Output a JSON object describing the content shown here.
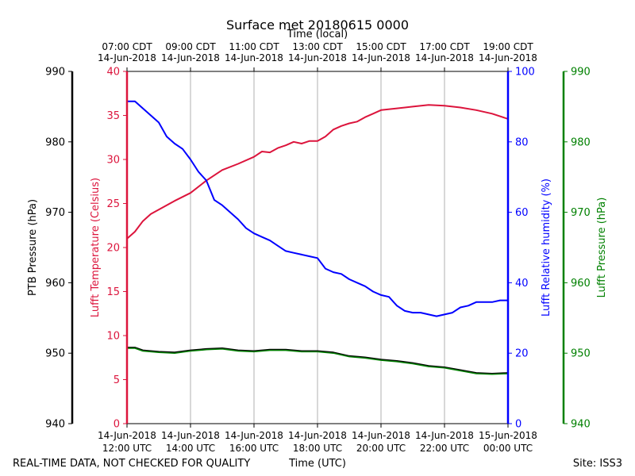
{
  "chart_data": {
    "type": "line",
    "title": "Surface met 20180615 0000",
    "top_axis_label": "Time (local)",
    "top_ticks": [
      {
        "x": 12,
        "line1": "07:00 CDT",
        "line2": "14-Jun-2018"
      },
      {
        "x": 14,
        "line1": "09:00 CDT",
        "line2": "14-Jun-2018"
      },
      {
        "x": 16,
        "line1": "11:00 CDT",
        "line2": "14-Jun-2018"
      },
      {
        "x": 18,
        "line1": "13:00 CDT",
        "line2": "14-Jun-2018"
      },
      {
        "x": 20,
        "line1": "15:00 CDT",
        "line2": "14-Jun-2018"
      },
      {
        "x": 22,
        "line1": "17:00 CDT",
        "line2": "14-Jun-2018"
      },
      {
        "x": 24,
        "line1": "19:00 CDT",
        "line2": "14-Jun-2018"
      }
    ],
    "bottom_ticks": [
      {
        "x": 12,
        "line1": "14-Jun-2018",
        "line2": "12:00 UTC"
      },
      {
        "x": 14,
        "line1": "14-Jun-2018",
        "line2": "14:00 UTC"
      },
      {
        "x": 16,
        "line1": "14-Jun-2018",
        "line2": "16:00 UTC"
      },
      {
        "x": 18,
        "line1": "14-Jun-2018",
        "line2": "18:00 UTC"
      },
      {
        "x": 20,
        "line1": "14-Jun-2018",
        "line2": "20:00 UTC"
      },
      {
        "x": 22,
        "line1": "14-Jun-2018",
        "line2": "22:00 UTC"
      },
      {
        "x": 24,
        "line1": "15-Jun-2018",
        "line2": "00:00 UTC"
      }
    ],
    "xlabel": "Time (UTC)",
    "xlim": [
      12,
      24
    ],
    "grid": true,
    "axes": {
      "ptb": {
        "label": "PTB Pressure (hPa)",
        "ylim": [
          940,
          990
        ],
        "ticks": [
          940,
          950,
          960,
          970,
          980,
          990
        ],
        "color": "#000000"
      },
      "temp": {
        "label": "Lufft Temperature (Celsius)",
        "ylim": [
          0,
          40
        ],
        "ticks": [
          0,
          5,
          10,
          15,
          20,
          25,
          30,
          35,
          40
        ],
        "color": "#dc143c"
      },
      "rh": {
        "label": "Lufft Relative humidity (%)",
        "ylim": [
          0,
          100
        ],
        "ticks": [
          0,
          20,
          40,
          60,
          80,
          100
        ],
        "color": "#0000ff"
      },
      "lufft_p": {
        "label": "Lufft Pressure (hPa)",
        "ylim": [
          940,
          990
        ],
        "ticks": [
          940,
          950,
          960,
          970,
          980,
          990
        ],
        "color": "#008000"
      }
    },
    "series": [
      {
        "name": "Lufft Temperature",
        "axis": "temp",
        "color": "#dc143c",
        "x": [
          12.0,
          12.25,
          12.5,
          12.75,
          13.0,
          13.5,
          14.0,
          14.5,
          15.0,
          15.5,
          16.0,
          16.25,
          16.5,
          16.75,
          17.0,
          17.25,
          17.5,
          17.75,
          18.0,
          18.25,
          18.5,
          18.75,
          19.0,
          19.25,
          19.5,
          19.75,
          20.0,
          20.5,
          21.0,
          21.5,
          22.0,
          22.5,
          23.0,
          23.5,
          24.0
        ],
        "y": [
          21.0,
          21.8,
          23.0,
          23.8,
          24.3,
          25.3,
          26.2,
          27.6,
          28.8,
          29.5,
          30.3,
          30.9,
          30.8,
          31.3,
          31.6,
          32.0,
          31.8,
          32.1,
          32.1,
          32.6,
          33.4,
          33.8,
          34.1,
          34.3,
          34.8,
          35.2,
          35.6,
          35.8,
          36.0,
          36.2,
          36.1,
          35.9,
          35.6,
          35.2,
          34.6
        ]
      },
      {
        "name": "Lufft Relative humidity",
        "axis": "rh",
        "color": "#0000ff",
        "x": [
          12.0,
          12.25,
          12.5,
          12.75,
          13.0,
          13.25,
          13.5,
          13.75,
          14.0,
          14.25,
          14.5,
          14.75,
          15.0,
          15.25,
          15.5,
          15.75,
          16.0,
          16.25,
          16.5,
          16.75,
          17.0,
          17.25,
          17.5,
          17.75,
          18.0,
          18.25,
          18.5,
          18.75,
          19.0,
          19.25,
          19.5,
          19.75,
          20.0,
          20.25,
          20.5,
          20.75,
          21.0,
          21.25,
          21.5,
          21.75,
          22.0,
          22.25,
          22.5,
          22.75,
          23.0,
          23.25,
          23.5,
          23.75,
          24.0
        ],
        "y": [
          91.5,
          91.5,
          89.5,
          87.5,
          85.5,
          81.5,
          79.5,
          78.0,
          75.0,
          71.5,
          69.0,
          63.5,
          62.0,
          60.0,
          58.0,
          55.5,
          54.0,
          53.0,
          52.0,
          50.5,
          49.0,
          48.5,
          48.0,
          47.5,
          47.0,
          44.0,
          43.0,
          42.5,
          41.0,
          40.0,
          39.0,
          37.5,
          36.5,
          36.0,
          33.5,
          32.0,
          31.5,
          31.5,
          31.0,
          30.5,
          31.0,
          31.5,
          33.0,
          33.5,
          34.5,
          34.5,
          34.5,
          35.0,
          35.0
        ]
      },
      {
        "name": "PTB Pressure",
        "axis": "ptb",
        "color": "#000000",
        "x": [
          12.0,
          12.25,
          12.5,
          13.0,
          13.5,
          14.0,
          14.5,
          15.0,
          15.5,
          16.0,
          16.5,
          17.0,
          17.5,
          18.0,
          18.5,
          19.0,
          19.5,
          20.0,
          20.5,
          21.0,
          21.5,
          22.0,
          22.5,
          23.0,
          23.5,
          24.0
        ],
        "y": [
          950.8,
          950.8,
          950.4,
          950.2,
          950.1,
          950.4,
          950.6,
          950.7,
          950.4,
          950.3,
          950.5,
          950.5,
          950.3,
          950.3,
          950.1,
          949.6,
          949.4,
          949.1,
          948.9,
          948.6,
          948.2,
          948.0,
          947.6,
          947.2,
          947.1,
          947.2
        ]
      },
      {
        "name": "Lufft Pressure",
        "axis": "lufft_p",
        "color": "#008000",
        "x": [
          12.0,
          12.25,
          12.5,
          13.0,
          13.5,
          14.0,
          14.5,
          15.0,
          15.5,
          16.0,
          16.5,
          17.0,
          17.5,
          18.0,
          18.5,
          19.0,
          19.5,
          20.0,
          20.5,
          21.0,
          21.5,
          22.0,
          22.5,
          23.0,
          23.5,
          24.0
        ],
        "y": [
          950.7,
          950.7,
          950.3,
          950.1,
          950.0,
          950.3,
          950.5,
          950.6,
          950.3,
          950.2,
          950.4,
          950.4,
          950.2,
          950.2,
          950.0,
          949.5,
          949.3,
          949.0,
          948.8,
          948.5,
          948.1,
          947.9,
          947.5,
          947.1,
          947.0,
          947.1
        ]
      }
    ],
    "footer_left": "REAL-TIME DATA, NOT CHECKED FOR QUALITY",
    "footer_right": "Site: ISS3"
  }
}
